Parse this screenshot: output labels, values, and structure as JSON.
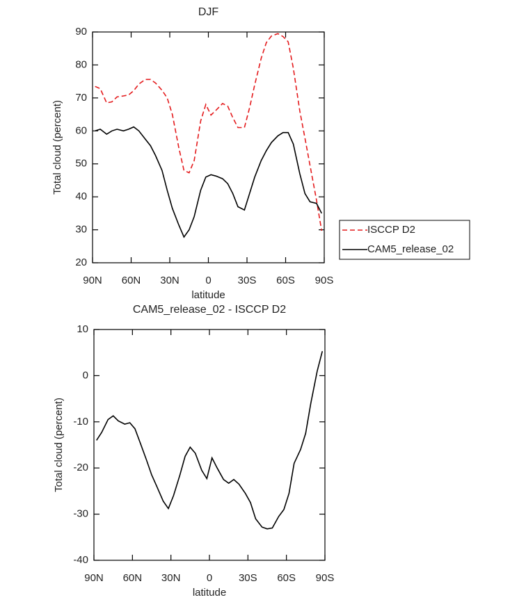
{
  "chart_data": [
    {
      "type": "line",
      "title": "DJF",
      "xlabel": "latitude",
      "ylabel": "Total cloud (percent)",
      "x": [
        88,
        84,
        79,
        75,
        71,
        66,
        62,
        58,
        54,
        49,
        45,
        41,
        36,
        32,
        28,
        23,
        19,
        15,
        11,
        6,
        2,
        -2,
        -6,
        -11,
        -15,
        -19,
        -23,
        -28,
        -32,
        -36,
        -41,
        -45,
        -49,
        -54,
        -58,
        -62,
        -66,
        -71,
        -75,
        -79,
        -84,
        -88
      ],
      "series": [
        {
          "name": "ISCCP D2",
          "color": "#e41a1c",
          "line_style": "dashed",
          "values": [
            73.5,
            72.8,
            68.5,
            68.8,
            70.3,
            70.6,
            70.9,
            72.2,
            74.2,
            75.6,
            75.6,
            74.5,
            72.3,
            70,
            65,
            55,
            48,
            47.3,
            51,
            63,
            68,
            64.8,
            66.3,
            68.3,
            67.5,
            64,
            61,
            61,
            67,
            74,
            82,
            86.8,
            88.8,
            89.5,
            88.6,
            87,
            79,
            66,
            57.8,
            49.5,
            39,
            29.7
          ]
        },
        {
          "name": "CAM5_release_02",
          "color": "#000000",
          "line_style": "solid",
          "values": [
            60,
            60.5,
            59,
            60,
            60.5,
            60,
            60.5,
            61.2,
            60,
            57.5,
            55.5,
            52.5,
            48,
            42,
            36.5,
            31.5,
            27.8,
            30,
            34,
            42,
            46,
            46.7,
            46.3,
            45.5,
            44,
            41,
            37,
            36,
            41,
            46,
            51,
            54,
            56.5,
            58.5,
            59.5,
            59.5,
            56,
            47,
            41,
            38.5,
            38,
            35
          ]
        }
      ],
      "xlim": [
        90,
        -90
      ],
      "xticks": [
        {
          "value": 90,
          "label": "90N"
        },
        {
          "value": 60,
          "label": "60N"
        },
        {
          "value": 30,
          "label": "30N"
        },
        0,
        {
          "value": -30,
          "label": "30S"
        },
        {
          "value": -60,
          "label": "60S"
        },
        {
          "value": -90,
          "label": "90S"
        }
      ],
      "ylim": [
        20,
        90
      ],
      "yticks": [
        20,
        30,
        40,
        50,
        60,
        70,
        80,
        90
      ],
      "grid": false,
      "legend": "right"
    },
    {
      "type": "line",
      "title": "CAM5_release_02 - ISCCP D2",
      "xlabel": "latitude",
      "ylabel": "Total cloud (percent)",
      "x": [
        88,
        84,
        79,
        75,
        71,
        66,
        62,
        58,
        54,
        49,
        45,
        41,
        36,
        32,
        28,
        23,
        19,
        15,
        11,
        6,
        2,
        -2,
        -6,
        -11,
        -15,
        -19,
        -23,
        -28,
        -32,
        -36,
        -41,
        -45,
        -49,
        -54,
        -58,
        -62,
        -66,
        -71,
        -75,
        -79,
        -84,
        -88
      ],
      "values": [
        -14,
        -12.3,
        -9.5,
        -8.7,
        -9.8,
        -10.5,
        -10.2,
        -11.5,
        -14.5,
        -18.3,
        -21.5,
        -24,
        -27.2,
        -28.8,
        -26,
        -21.5,
        -17.5,
        -15.5,
        -16.8,
        -20.5,
        -22.3,
        -17.8,
        -20,
        -22.5,
        -23.3,
        -22.5,
        -23.5,
        -25.5,
        -27.5,
        -31,
        -32.8,
        -33.2,
        -33,
        -30.5,
        -29,
        -25.5,
        -19,
        -16,
        -12.5,
        -6,
        1,
        5.3
      ],
      "color": "#000000",
      "xlim": [
        90,
        -90
      ],
      "xticks": [
        {
          "value": 90,
          "label": "90N"
        },
        {
          "value": 60,
          "label": "60N"
        },
        {
          "value": 30,
          "label": "30N"
        },
        0,
        {
          "value": -30,
          "label": "30S"
        },
        {
          "value": -60,
          "label": "60S"
        },
        {
          "value": -90,
          "label": "90S"
        }
      ],
      "ylim": [
        -40,
        10
      ],
      "yticks": [
        -40,
        -30,
        -20,
        -10,
        0,
        10
      ],
      "grid": false
    }
  ]
}
